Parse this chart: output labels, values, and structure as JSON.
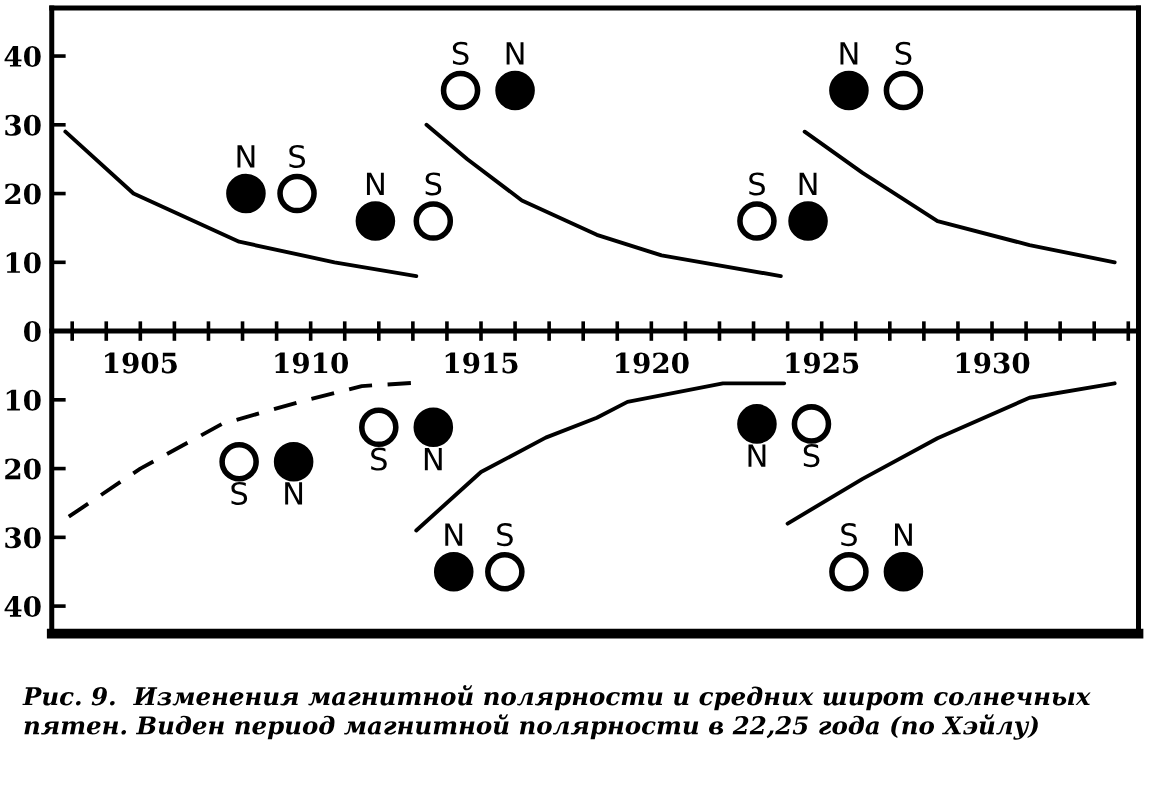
{
  "chart_data": {
    "type": "scatter",
    "xlim": [
      1902.4,
      1934.3
    ],
    "ylim": [
      -44,
      47
    ],
    "xticks": [
      {
        "value": 1903,
        "label": null
      },
      {
        "value": 1904,
        "label": null
      },
      1905,
      {
        "value": 1906,
        "label": null
      },
      {
        "value": 1907,
        "label": null
      },
      {
        "value": 1908,
        "label": null
      },
      {
        "value": 1909,
        "label": null
      },
      1910,
      {
        "value": 1911,
        "label": null
      },
      {
        "value": 1912,
        "label": null
      },
      {
        "value": 1913,
        "label": null
      },
      {
        "value": 1914,
        "label": null
      },
      1915,
      {
        "value": 1916,
        "label": null
      },
      {
        "value": 1917,
        "label": null
      },
      {
        "value": 1918,
        "label": null
      },
      {
        "value": 1919,
        "label": null
      },
      1920,
      {
        "value": 1921,
        "label": null
      },
      {
        "value": 1922,
        "label": null
      },
      {
        "value": 1923,
        "label": null
      },
      {
        "value": 1924,
        "label": null
      },
      1925,
      {
        "value": 1926,
        "label": null
      },
      {
        "value": 1927,
        "label": null
      },
      {
        "value": 1928,
        "label": null
      },
      {
        "value": 1929,
        "label": null
      },
      1930,
      {
        "value": 1931,
        "label": null
      },
      {
        "value": 1932,
        "label": null
      },
      {
        "value": 1933,
        "label": null
      },
      {
        "value": 1934,
        "label": null
      }
    ],
    "yticks": [
      40,
      30,
      20,
      10,
      0,
      {
        "value": -10,
        "label": "10"
      },
      {
        "value": -20,
        "label": "20"
      },
      {
        "value": -30,
        "label": "30"
      },
      {
        "value": -40,
        "label": "40"
      }
    ],
    "grid": false,
    "legend": false,
    "marker": "circle",
    "series": [
      {
        "type": "line",
        "color": "#000000",
        "line_style": "solid",
        "marker": "none",
        "x": [
          1902.8,
          1904.8,
          1907.9,
          1910.7,
          1913.1
        ],
        "values": [
          29,
          20,
          13,
          10,
          8
        ]
      },
      {
        "type": "line",
        "color": "#000000",
        "line_style": "solid",
        "marker": "none",
        "x": [
          1913.4,
          1914.6,
          1916.2,
          1918.4,
          1920.3,
          1923.8
        ],
        "values": [
          30,
          25,
          19,
          14,
          11,
          8
        ]
      },
      {
        "type": "line",
        "color": "#000000",
        "line_style": "solid",
        "marker": "none",
        "x": [
          1924.5,
          1926.2,
          1928.4,
          1931.1,
          1933.6
        ],
        "values": [
          29,
          23,
          16,
          12.5,
          10
        ]
      },
      {
        "type": "line",
        "color": "#000000",
        "line_style": "dashed",
        "marker": "none",
        "x": [
          1902.9,
          1905,
          1907.4,
          1909.9,
          1911.5,
          1913.1
        ],
        "values": [
          -27,
          -20,
          -13.5,
          -10,
          -8,
          -7.5
        ]
      },
      {
        "type": "line",
        "color": "#000000",
        "line_style": "solid",
        "marker": "none",
        "x": [
          1913.1,
          1915,
          1916.9,
          1918.4,
          1919.3,
          1922.1,
          1923.9
        ],
        "values": [
          -29,
          -20.5,
          -15.5,
          -12.6,
          -10.3,
          -7.6,
          -7.6
        ]
      },
      {
        "type": "line",
        "color": "#000000",
        "line_style": "solid",
        "marker": "none",
        "x": [
          1924,
          1926.2,
          1928.4,
          1931.1,
          1933.6
        ],
        "values": [
          -28,
          -21.5,
          -15.6,
          -9.7,
          -7.6
        ]
      },
      {
        "color": "#000000",
        "x": [
          1908.1,
          1911.9,
          1916.0,
          1925.8,
          1924.6,
          1909.5,
          1913.6,
          1914.2,
          1923.1,
          1927.4
        ],
        "values": [
          20,
          16,
          35,
          35,
          16,
          -19,
          -14,
          -35,
          -13.5,
          -35
        ],
        "value_labels": [
          "N",
          "N",
          "N",
          "N",
          "N",
          "N",
          "N",
          "N",
          "N",
          "N"
        ]
      },
      {
        "color": "#ffffff",
        "x": [
          1909.6,
          1913.6,
          1914.4,
          1927.4,
          1923.1,
          1907.9,
          1912.0,
          1915.7,
          1924.7,
          1925.8
        ],
        "values": [
          20,
          16,
          35,
          35,
          16,
          -19,
          -14,
          -35,
          -13.5,
          -35
        ],
        "value_labels": [
          "S",
          "S",
          "S",
          "S",
          "S",
          "S",
          "S",
          "S",
          "S",
          "S"
        ]
      }
    ],
    "annotations": [
      "Рис. 9.  Изменения магнитной полярности и средних широт солнечных пятен. Виден период магнитной полярности в 22,25 года (по Хэйлу)"
    ]
  }
}
